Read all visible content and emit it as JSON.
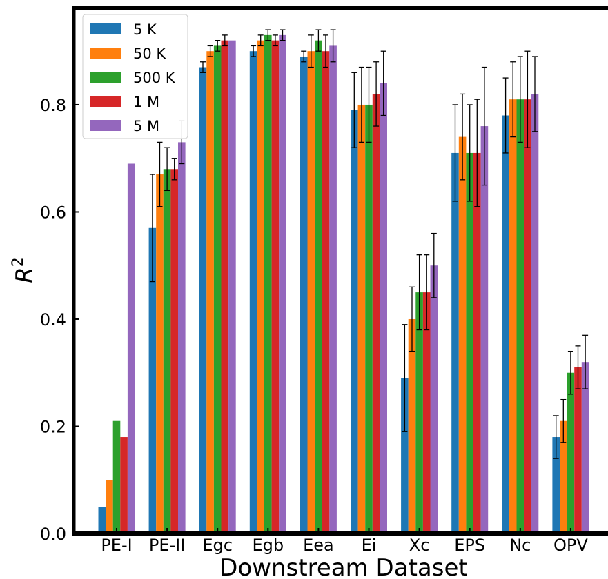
{
  "chart_data": {
    "type": "bar",
    "title": "",
    "xlabel": "Downstream Dataset",
    "ylabel": "R",
    "ylabel_superscript": "2",
    "ylim": [
      0.0,
      0.98
    ],
    "yticks": [
      0.0,
      0.2,
      0.4,
      0.6,
      0.8
    ],
    "ytick_labels": [
      "0.0",
      "0.2",
      "0.4",
      "0.6",
      "0.8"
    ],
    "grid": false,
    "legend_position": "top-left",
    "categories": [
      "PE-I",
      "PE-II",
      "Egc",
      "Egb",
      "Eea",
      "Ei",
      "Xc",
      "EPS",
      "Nc",
      "OPV"
    ],
    "series": [
      {
        "name": "5 K",
        "color": "#1f77b4",
        "values": [
          0.05,
          0.57,
          0.87,
          0.9,
          0.89,
          0.79,
          0.29,
          0.71,
          0.78,
          0.18
        ],
        "errors": [
          0.0,
          0.1,
          0.01,
          0.01,
          0.01,
          0.07,
          0.1,
          0.09,
          0.07,
          0.04
        ]
      },
      {
        "name": "50 K",
        "color": "#ff7f0e",
        "values": [
          0.1,
          0.67,
          0.9,
          0.92,
          0.9,
          0.8,
          0.4,
          0.74,
          0.81,
          0.21
        ],
        "errors": [
          0.0,
          0.06,
          0.01,
          0.01,
          0.03,
          0.07,
          0.06,
          0.08,
          0.07,
          0.04
        ]
      },
      {
        "name": "500 K",
        "color": "#2ca02c",
        "values": [
          0.21,
          0.68,
          0.91,
          0.93,
          0.92,
          0.8,
          0.45,
          0.71,
          0.81,
          0.3
        ],
        "errors": [
          0.0,
          0.04,
          0.01,
          0.01,
          0.02,
          0.07,
          0.07,
          0.09,
          0.08,
          0.04
        ]
      },
      {
        "name": "1 M",
        "color": "#d62728",
        "values": [
          0.18,
          0.68,
          0.92,
          0.92,
          0.9,
          0.82,
          0.45,
          0.71,
          0.81,
          0.31
        ],
        "errors": [
          0.0,
          0.02,
          0.01,
          0.01,
          0.03,
          0.06,
          0.07,
          0.1,
          0.09,
          0.04
        ]
      },
      {
        "name": "5 M",
        "color": "#9467bd",
        "values": [
          0.69,
          0.73,
          0.92,
          0.93,
          0.91,
          0.84,
          0.5,
          0.76,
          0.82,
          0.32
        ],
        "errors": [
          0.0,
          0.04,
          0.0,
          0.01,
          0.03,
          0.06,
          0.06,
          0.11,
          0.07,
          0.05
        ]
      }
    ]
  }
}
